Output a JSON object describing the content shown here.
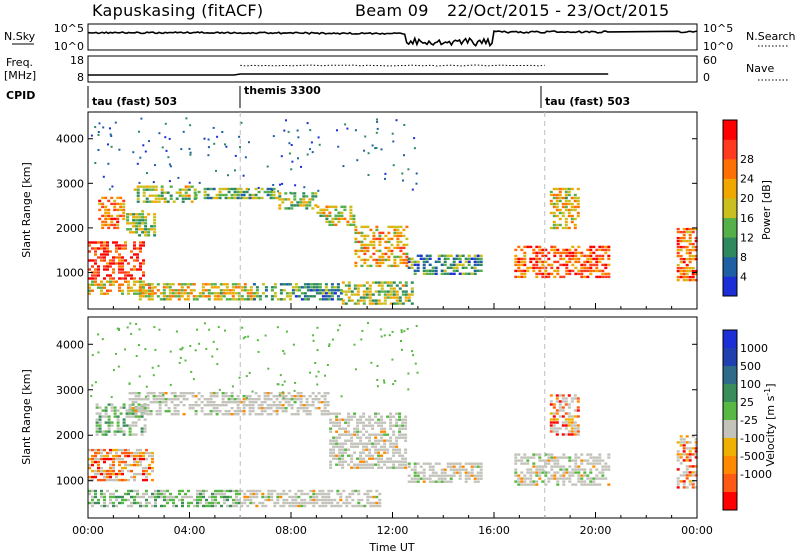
{
  "header": {
    "station": "Kapuskasing (fitACF)",
    "beam": "Beam 09",
    "date_range": "22/Oct/2015 - 23/Oct/2015"
  },
  "panels": {
    "noise": {
      "left_label": "N.Sky",
      "left_ticks": [
        "10^5",
        "10^0"
      ],
      "right_ticks": [
        "10^5",
        "10^0"
      ],
      "right_label": "N.Search"
    },
    "freq": {
      "left_label_1": "Freq.",
      "left_label_2": "[MHz]",
      "left_ticks": [
        "18",
        "8"
      ],
      "right_ticks": [
        "60",
        "0"
      ],
      "right_label": "Nave"
    },
    "cpid": {
      "label": "CPID",
      "segments": [
        "tau (fast) 503",
        "themis 3300",
        "tau (fast) 503"
      ]
    }
  },
  "colors": {
    "power": [
      "#1c2fd6",
      "#1f5fa3",
      "#2e8a5e",
      "#55b04a",
      "#c9c020",
      "#f0a800",
      "#ff7000",
      "#ff3a1f",
      "#ff0000"
    ],
    "velocity_pos": [
      "#1c2fd6",
      "#2040b0",
      "#2e6a8a",
      "#3a8c5a",
      "#58b844"
    ],
    "velocity_neg": [
      "#f0b000",
      "#ff8a00",
      "#ff5a14",
      "#ff0000"
    ],
    "ground_scatter": "#c3c3bb"
  },
  "chart_data": [
    {
      "type": "heatmap",
      "quantity": "power",
      "ylabel": "Slant Range [km]",
      "xlabel": "Time UT",
      "x_ticks": [
        "00:00",
        "04:00",
        "08:00",
        "12:00",
        "16:00",
        "20:00",
        "00:00"
      ],
      "x_range_hours": [
        0,
        24
      ],
      "y_ticks": [
        "1000",
        "2000",
        "3000",
        "4000"
      ],
      "y_range_km": [
        180,
        4600
      ],
      "colorbar_label": "Power [dB]",
      "colorbar_ticks": [
        "4",
        "8",
        "12",
        "16",
        "20",
        "24",
        "28"
      ],
      "cpid_change_hours": [
        6,
        18
      ],
      "bands": [
        {
          "t0": 0.0,
          "t1": 2.2,
          "r0": 850,
          "r1": 1700,
          "level": 0.86
        },
        {
          "t0": 0.0,
          "t1": 2.6,
          "r0": 500,
          "r1": 820,
          "level": 0.6
        },
        {
          "t0": 0.4,
          "t1": 1.4,
          "r0": 2000,
          "r1": 2700,
          "level": 0.7
        },
        {
          "t0": 1.5,
          "t1": 2.6,
          "r0": 1800,
          "r1": 2400,
          "level": 0.45
        },
        {
          "t0": 1.8,
          "t1": 4.2,
          "r0": 2600,
          "r1": 2950,
          "level": 0.45
        },
        {
          "t0": 4.2,
          "t1": 7.5,
          "r0": 2650,
          "r1": 2900,
          "level": 0.35
        },
        {
          "t0": 7.5,
          "t1": 9.0,
          "r0": 2450,
          "r1": 2800,
          "level": 0.45
        },
        {
          "t0": 9.0,
          "t1": 10.5,
          "r0": 2050,
          "r1": 2500,
          "level": 0.55
        },
        {
          "t0": 10.5,
          "t1": 12.6,
          "r0": 1150,
          "r1": 2050,
          "level": 0.6
        },
        {
          "t0": 2.0,
          "t1": 6.5,
          "r0": 420,
          "r1": 760,
          "level": 0.55
        },
        {
          "t0": 6.5,
          "t1": 10.0,
          "r0": 420,
          "r1": 760,
          "level": 0.3
        },
        {
          "t0": 10.0,
          "t1": 12.8,
          "r0": 300,
          "r1": 800,
          "level": 0.45
        },
        {
          "t0": 12.6,
          "t1": 15.5,
          "r0": 950,
          "r1": 1400,
          "level": 0.3
        },
        {
          "t0": 16.8,
          "t1": 20.5,
          "r0": 900,
          "r1": 1600,
          "level": 0.78
        },
        {
          "t0": 18.2,
          "t1": 19.3,
          "r0": 2000,
          "r1": 2900,
          "level": 0.55
        },
        {
          "t0": 23.2,
          "t1": 24.0,
          "r0": 850,
          "r1": 2000,
          "level": 0.72
        }
      ]
    },
    {
      "type": "heatmap",
      "quantity": "velocity",
      "ylabel": "Slant Range [km]",
      "xlabel": "Time UT",
      "x_ticks": [
        "00:00",
        "04:00",
        "08:00",
        "12:00",
        "16:00",
        "20:00",
        "00:00"
      ],
      "x_range_hours": [
        0,
        24
      ],
      "y_ticks": [
        "1000",
        "2000",
        "3000",
        "4000"
      ],
      "y_range_km": [
        180,
        4600
      ],
      "colorbar_label": "Velocity [m s",
      "colorbar_label_sup": "-1",
      "colorbar_ticks": [
        "1000",
        "500",
        "100",
        "25",
        "-25",
        "-100",
        "-500",
        "-1000"
      ],
      "cpid_change_hours": [
        6,
        18
      ],
      "bands": [
        {
          "t0": 0.0,
          "t1": 2.6,
          "r0": 1000,
          "r1": 1700,
          "class": "mixed-neg"
        },
        {
          "t0": 0.3,
          "t1": 2.2,
          "r0": 2000,
          "r1": 2700,
          "class": "mixed-pos"
        },
        {
          "t0": 1.6,
          "t1": 9.5,
          "r0": 2450,
          "r1": 2950,
          "class": "ground"
        },
        {
          "t0": 9.5,
          "t1": 12.5,
          "r0": 1300,
          "r1": 2500,
          "class": "ground"
        },
        {
          "t0": 0.0,
          "t1": 6.0,
          "r0": 450,
          "r1": 800,
          "class": "mixed-pos"
        },
        {
          "t0": 6.0,
          "t1": 11.5,
          "r0": 450,
          "r1": 800,
          "class": "ground"
        },
        {
          "t0": 12.6,
          "t1": 15.5,
          "r0": 950,
          "r1": 1400,
          "class": "ground"
        },
        {
          "t0": 16.8,
          "t1": 20.5,
          "r0": 900,
          "r1": 1600,
          "class": "ground"
        },
        {
          "t0": 18.2,
          "t1": 19.3,
          "r0": 2000,
          "r1": 2900,
          "class": "mixed-neg"
        },
        {
          "t0": 23.2,
          "t1": 24.0,
          "r0": 850,
          "r1": 2000,
          "class": "mixed-neg"
        }
      ]
    }
  ]
}
